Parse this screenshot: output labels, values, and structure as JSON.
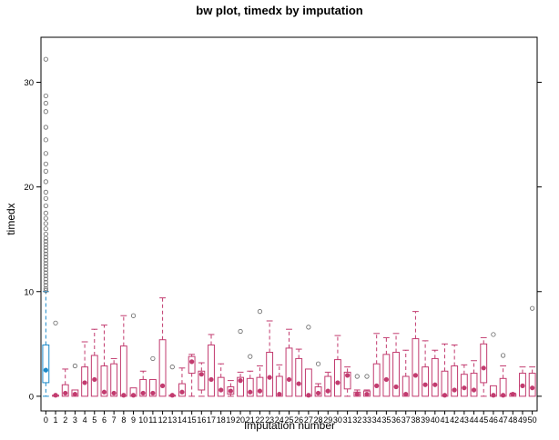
{
  "chart_data": {
    "type": "box",
    "title": "bw plot, timedx by imputation",
    "xlabel": "Imputation number",
    "ylabel": "timedx",
    "ylim": [
      -1.4,
      34.3
    ],
    "yticks": [
      0,
      10,
      20,
      30
    ],
    "categories": [
      "0",
      "1",
      "2",
      "3",
      "4",
      "5",
      "6",
      "7",
      "8",
      "9",
      "10",
      "11",
      "12",
      "13",
      "14",
      "15",
      "16",
      "17",
      "18",
      "19",
      "20",
      "21",
      "22",
      "23",
      "24",
      "25",
      "26",
      "27",
      "28",
      "29",
      "30",
      "31",
      "32",
      "33",
      "34",
      "35",
      "36",
      "37",
      "38",
      "39",
      "40",
      "41",
      "42",
      "43",
      "44",
      "45",
      "46",
      "47",
      "48",
      "49",
      "50"
    ],
    "colors": {
      "observed": "#1a88c8",
      "imputed": "#c23b6f",
      "outlier": "#666666"
    },
    "observed": {
      "category": "0",
      "stats": [
        0,
        1.3,
        2.5,
        4.9,
        10.0
      ],
      "outliers": [
        10.1,
        10.3,
        10.6,
        10.9,
        11.2,
        11.5,
        11.8,
        12.1,
        12.4,
        12.7,
        13.0,
        13.3,
        13.6,
        13.9,
        14.2,
        14.5,
        14.8,
        15.1,
        15.5,
        16.0,
        16.5,
        17.0,
        17.5,
        18.2,
        18.9,
        19.5,
        20.5,
        21.5,
        22.2,
        23.2,
        24.5,
        25.7,
        27.2,
        28.0,
        28.7,
        32.2
      ]
    },
    "imputed": [
      {
        "category": "1",
        "stats": [
          0,
          0,
          0.1,
          0.1,
          0.1
        ],
        "outliers": [
          7.0
        ]
      },
      {
        "category": "2",
        "stats": [
          0,
          0,
          0.3,
          1.1,
          2.6
        ],
        "outliers": []
      },
      {
        "category": "3",
        "stats": [
          0,
          0,
          0.2,
          0.6,
          0.6
        ],
        "outliers": [
          2.9
        ]
      },
      {
        "category": "4",
        "stats": [
          0,
          0,
          1.3,
          2.8,
          5.2
        ],
        "outliers": []
      },
      {
        "category": "5",
        "stats": [
          0,
          0,
          1.6,
          3.9,
          6.4
        ],
        "outliers": []
      },
      {
        "category": "6",
        "stats": [
          0,
          0,
          0.4,
          2.9,
          6.8
        ],
        "outliers": []
      },
      {
        "category": "7",
        "stats": [
          0,
          0,
          0.3,
          3.1,
          3.6
        ],
        "outliers": []
      },
      {
        "category": "8",
        "stats": [
          0,
          0,
          0.1,
          4.8,
          7.7
        ],
        "outliers": []
      },
      {
        "category": "9",
        "stats": [
          0,
          0,
          0.1,
          0.8,
          0.8
        ],
        "outliers": [
          7.7
        ]
      },
      {
        "category": "10",
        "stats": [
          0,
          0,
          0.3,
          1.6,
          2.4
        ],
        "outliers": []
      },
      {
        "category": "11",
        "stats": [
          0,
          0,
          0.3,
          1.6,
          1.6
        ],
        "outliers": [
          3.6
        ]
      },
      {
        "category": "12",
        "stats": [
          0,
          0,
          1.0,
          5.4,
          9.4
        ],
        "outliers": []
      },
      {
        "category": "13",
        "stats": [
          0,
          0,
          0.1,
          0.1,
          0.1
        ],
        "outliers": [
          2.8
        ]
      },
      {
        "category": "14",
        "stats": [
          0,
          0,
          0.4,
          1.2,
          2.7
        ],
        "outliers": []
      },
      {
        "category": "15",
        "stats": [
          0,
          2.2,
          3.3,
          3.8,
          4.0
        ],
        "outliers": []
      },
      {
        "category": "16",
        "stats": [
          0,
          0.6,
          2.1,
          2.4,
          3.2
        ],
        "outliers": []
      },
      {
        "category": "17",
        "stats": [
          0,
          0,
          1.6,
          4.9,
          5.9
        ],
        "outliers": []
      },
      {
        "category": "18",
        "stats": [
          0,
          0,
          0.6,
          1.8,
          3.1
        ],
        "outliers": []
      },
      {
        "category": "19",
        "stats": [
          0,
          0.2,
          0.5,
          0.9,
          1.5
        ],
        "outliers": []
      },
      {
        "category": "20",
        "stats": [
          0,
          0,
          1.5,
          1.8,
          2.3
        ],
        "outliers": [
          6.2
        ]
      },
      {
        "category": "21",
        "stats": [
          0,
          0,
          0.4,
          1.7,
          2.4
        ],
        "outliers": [
          3.8
        ]
      },
      {
        "category": "22",
        "stats": [
          0,
          0,
          0.5,
          1.8,
          2.9
        ],
        "outliers": [
          8.1
        ]
      },
      {
        "category": "23",
        "stats": [
          0,
          0,
          1.8,
          4.2,
          7.2
        ],
        "outliers": []
      },
      {
        "category": "24",
        "stats": [
          0,
          0,
          0.2,
          1.9,
          3.0
        ],
        "outliers": []
      },
      {
        "category": "25",
        "stats": [
          0,
          0,
          1.6,
          4.6,
          6.4
        ],
        "outliers": []
      },
      {
        "category": "26",
        "stats": [
          0,
          0,
          1.2,
          3.6,
          4.5
        ],
        "outliers": []
      },
      {
        "category": "27",
        "stats": [
          0,
          0,
          0.1,
          2.6,
          2.6
        ],
        "outliers": [
          6.6
        ]
      },
      {
        "category": "28",
        "stats": [
          0,
          0,
          0.3,
          0.9,
          1.2
        ],
        "outliers": [
          3.1
        ]
      },
      {
        "category": "29",
        "stats": [
          0,
          0,
          0.5,
          1.9,
          2.3
        ],
        "outliers": []
      },
      {
        "category": "30",
        "stats": [
          0,
          0,
          1.3,
          3.5,
          5.8
        ],
        "outliers": []
      },
      {
        "category": "31",
        "stats": [
          0,
          0.7,
          2.0,
          2.3,
          2.8
        ],
        "outliers": []
      },
      {
        "category": "32",
        "stats": [
          0,
          0,
          0.2,
          0.4,
          0.6
        ],
        "outliers": [
          1.9
        ]
      },
      {
        "category": "33",
        "stats": [
          0,
          0,
          0.2,
          0.5,
          0.6
        ],
        "outliers": [
          1.9
        ]
      },
      {
        "category": "34",
        "stats": [
          0,
          0,
          1.0,
          3.1,
          6.0
        ],
        "outliers": []
      },
      {
        "category": "35",
        "stats": [
          0,
          0,
          1.6,
          4.0,
          5.6
        ],
        "outliers": []
      },
      {
        "category": "36",
        "stats": [
          0,
          0,
          0.9,
          4.2,
          6.0
        ],
        "outliers": []
      },
      {
        "category": "37",
        "stats": [
          0,
          0,
          0.2,
          1.9,
          4.4
        ],
        "outliers": []
      },
      {
        "category": "38",
        "stats": [
          0,
          0,
          2.0,
          5.5,
          8.1
        ],
        "outliers": []
      },
      {
        "category": "39",
        "stats": [
          0,
          0,
          1.1,
          2.8,
          5.3
        ],
        "outliers": []
      },
      {
        "category": "40",
        "stats": [
          0,
          0,
          1.1,
          3.6,
          4.4
        ],
        "outliers": []
      },
      {
        "category": "41",
        "stats": [
          0,
          0,
          0.1,
          2.4,
          5.0
        ],
        "outliers": []
      },
      {
        "category": "42",
        "stats": [
          0,
          0,
          0.6,
          2.9,
          4.9
        ],
        "outliers": []
      },
      {
        "category": "43",
        "stats": [
          0,
          0,
          0.8,
          2.1,
          3.0
        ],
        "outliers": []
      },
      {
        "category": "44",
        "stats": [
          0,
          0,
          0.6,
          2.2,
          3.4
        ],
        "outliers": []
      },
      {
        "category": "45",
        "stats": [
          0,
          1.3,
          2.7,
          5.0,
          5.6
        ],
        "outliers": []
      },
      {
        "category": "46",
        "stats": [
          0,
          0,
          0.1,
          1.0,
          1.0
        ],
        "outliers": [
          5.9
        ]
      },
      {
        "category": "47",
        "stats": [
          0,
          0,
          0.1,
          1.7,
          2.9
        ],
        "outliers": [
          3.9
        ]
      },
      {
        "category": "48",
        "stats": [
          0,
          0,
          0.2,
          0.2,
          0.3
        ],
        "outliers": []
      },
      {
        "category": "49",
        "stats": [
          0,
          0,
          1.0,
          2.2,
          2.8
        ],
        "outliers": []
      },
      {
        "category": "50",
        "stats": [
          0,
          0,
          0.8,
          2.2,
          2.8
        ],
        "outliers": [
          8.4
        ]
      }
    ]
  }
}
